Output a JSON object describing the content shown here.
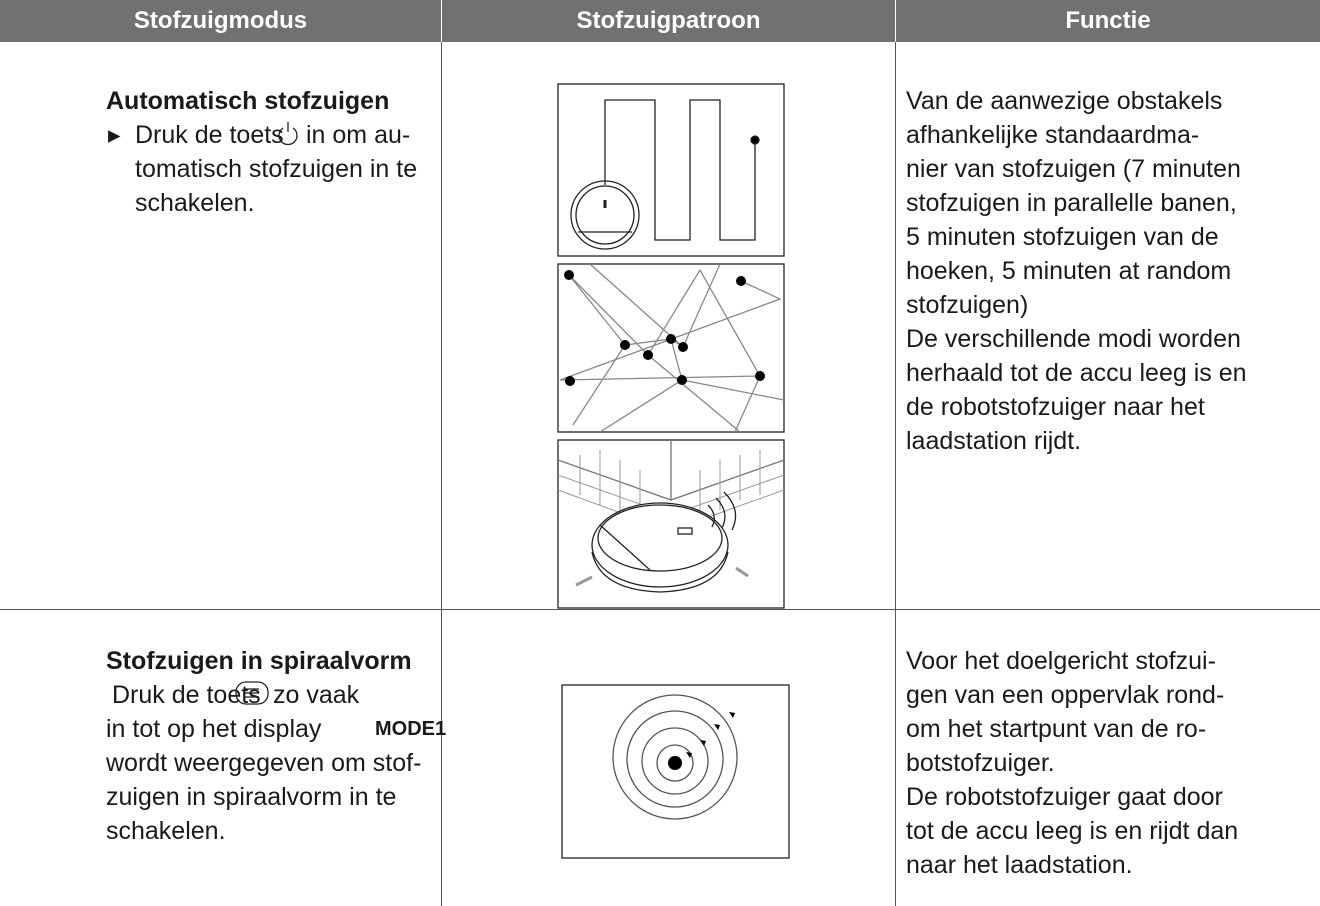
{
  "table": {
    "header": [
      "Stofzuigmodus",
      "Stofzuigpatroon",
      "Functie"
    ],
    "rows": [
      {
        "mode_title": "Automatisch stofzuigen",
        "instruction_start": "Druk de toets",
        "instruction_after_icon": "in om au-",
        "instruction_lines": [
          "tomatisch stofzuigen in te",
          "schakelen."
        ],
        "function_lines": [
          "Van de aanwezige obstakels",
          "afhankelijke standaardma-",
          "nier van stofzuigen (7 minuten",
          "stofzuigen in parallelle banen,",
          "5 minuten stofzuigen van de",
          "hoeken, 5 minuten at random",
          "stofzuigen)",
          "De verschillende modi worden",
          "herhaald tot de accu leeg is en",
          "de robotstofzuiger naar het",
          "laadstation rijdt."
        ]
      },
      {
        "mode_title": "Stofzuigen in spiraalvorm",
        "instruction_start": "Druk de toets",
        "instruction_after_icon": "zo vaak",
        "instruction_line2_start": "in  tot op het display",
        "instruction_display_text": "MODE1",
        "instruction_lines": [
          "wordt weergegeven om stof-",
          "zuigen in spiraalvorm in te",
          "schakelen."
        ],
        "function_lines": [
          "Voor het doelgericht stofzui-",
          "gen van een oppervlak rond-",
          "om het startpunt van de ro-",
          "botstofzuiger.",
          "De robotstofzuiger gaat door",
          "tot de accu leeg is en rijdt dan",
          "naar het laadstation."
        ]
      }
    ]
  }
}
